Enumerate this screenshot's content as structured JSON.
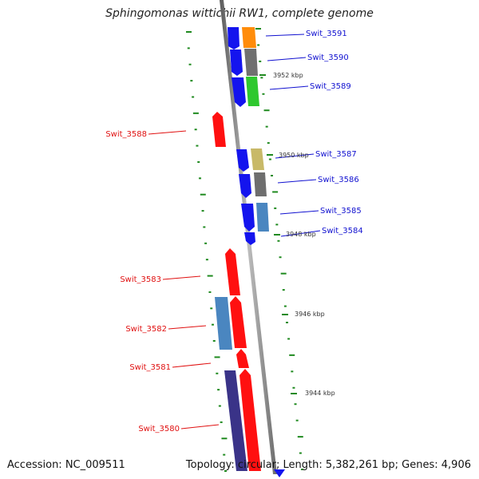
{
  "title": "Sphingomonas wittichii RW1, complete genome",
  "footer": {
    "accession": "Accession: NC_009511",
    "summary": "Topology: circular; Length: 5,382,261 bp; Genes: 4,906"
  },
  "colors": {
    "forward_gene": "#ff1010",
    "reverse_gene": "#1414ee",
    "backbone": "#8a8a8a",
    "tick": "#1f8a1f",
    "label_forward": "#e01010",
    "label_reverse": "#1010d0"
  },
  "genes": [
    {
      "name": "Swit_3591",
      "strand": "reverse"
    },
    {
      "name": "Swit_3590",
      "strand": "reverse"
    },
    {
      "name": "Swit_3589",
      "strand": "reverse"
    },
    {
      "name": "Swit_3588",
      "strand": "forward"
    },
    {
      "name": "Swit_3587",
      "strand": "reverse"
    },
    {
      "name": "Swit_3586",
      "strand": "reverse"
    },
    {
      "name": "Swit_3585",
      "strand": "reverse"
    },
    {
      "name": "Swit_3584",
      "strand": "reverse"
    },
    {
      "name": "Swit_3583",
      "strand": "forward"
    },
    {
      "name": "Swit_3582",
      "strand": "forward"
    },
    {
      "name": "Swit_3581",
      "strand": "forward"
    },
    {
      "name": "Swit_3580",
      "strand": "forward"
    }
  ],
  "kbp_labels": [
    "3952 kbp",
    "3950 kbp",
    "3948 kbp",
    "3946 kbp",
    "3944 kbp"
  ]
}
